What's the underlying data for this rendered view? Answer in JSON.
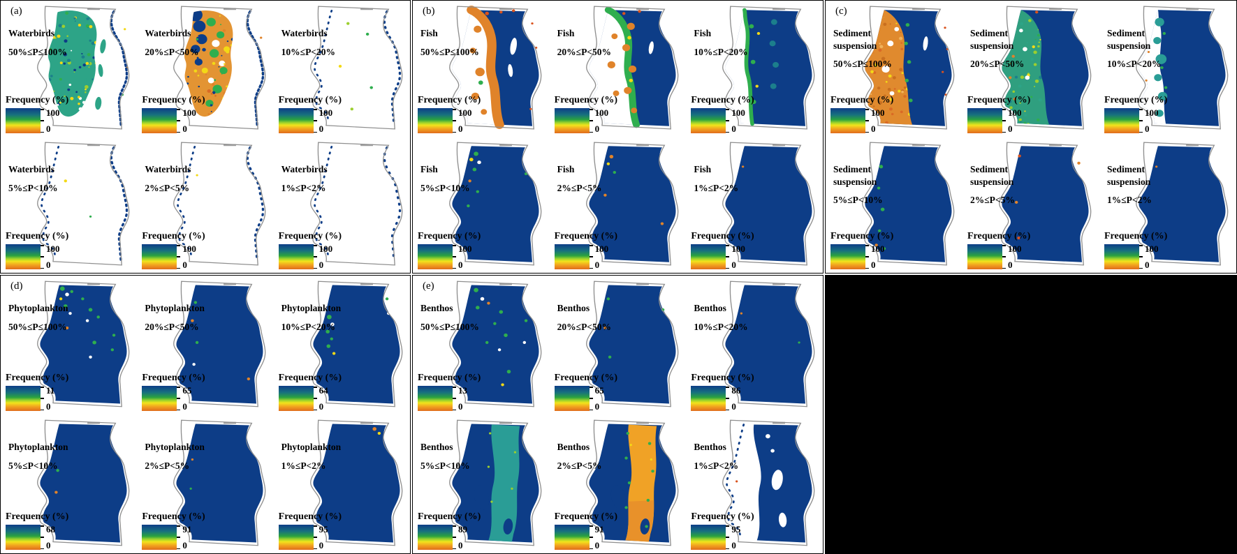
{
  "figure": {
    "description": "Frequency (%) map panels for five ecological indicators across probability classes"
  },
  "colors": {
    "navy": "#0d3d87",
    "teal_speckle": "#2da487",
    "teal_band": "#2a9d96",
    "orange_band": "#f0a226",
    "fringe_orange": "#e0832a",
    "deep_orange": "#d9531e",
    "green": "#2fae4e",
    "lime": "#9ccf2f",
    "yellow": "#f3d916",
    "dark_teal": "#1c7f8c",
    "mottle_orange": "#e39433",
    "west_orange": "#e08a2e",
    "west_teal": "#2f9f7f",
    "boundary_gray": "#8f8f8f",
    "colorbar_stops": [
      "#0d3d87",
      "#17707f",
      "#2ba33f",
      "#9ed32c",
      "#f2e41c",
      "#f2a51f",
      "#e06c1c"
    ]
  },
  "panels": [
    {
      "id": "a",
      "letter": "(a)",
      "maps": [
        {
          "species_lines": [
            "Waterbirds"
          ],
          "range": "50%≤P≤100%",
          "legend": {
            "label": "Frequency (%)",
            "max": "100",
            "min": "0"
          },
          "style": "teal-speckle-lobe"
        },
        {
          "species_lines": [
            "Waterbirds"
          ],
          "range": "20%≤P<50%",
          "legend": {
            "label": "Frequency (%)",
            "max": "100",
            "min": "0"
          },
          "style": "orange-blue-mottled-lobe"
        },
        {
          "species_lines": [
            "Waterbirds"
          ],
          "range": "10%≤P<20%",
          "legend": {
            "label": "Frequency (%)",
            "max": "100",
            "min": "0"
          },
          "style": "sparse-specks"
        },
        {
          "species_lines": [
            "Waterbirds"
          ],
          "range": "5%≤P<10%",
          "legend": {
            "label": "Frequency (%)",
            "max": "100",
            "min": "0"
          },
          "style": "coastal-dots"
        },
        {
          "species_lines": [
            "Waterbirds"
          ],
          "range": "2%≤P<5%",
          "legend": {
            "label": "Frequency (%)",
            "max": "100",
            "min": "0"
          },
          "style": "coastal-dots-few"
        },
        {
          "species_lines": [
            "Waterbirds"
          ],
          "range": "1%≤P<2%",
          "legend": {
            "label": "Frequency (%)",
            "max": "100",
            "min": "0"
          },
          "style": "coastal-dots-min"
        }
      ]
    },
    {
      "id": "b",
      "letter": "(b)",
      "maps": [
        {
          "species_lines": [
            "Fish"
          ],
          "range": "50%≤P≤100%",
          "legend": {
            "label": "Frequency (%)",
            "max": "100",
            "min": "0"
          },
          "style": "east-mass-orange-fringe"
        },
        {
          "species_lines": [
            "Fish"
          ],
          "range": "20%≤P<50%",
          "legend": {
            "label": "Frequency (%)",
            "max": "100",
            "min": "0"
          },
          "style": "east-mass-green-orange-fringe"
        },
        {
          "species_lines": [
            "Fish"
          ],
          "range": "10%≤P<20%",
          "legend": {
            "label": "Frequency (%)",
            "max": "100",
            "min": "0"
          },
          "style": "mass-green-west-edge"
        },
        {
          "species_lines": [
            "Fish"
          ],
          "range": "5%≤P<10%",
          "legend": {
            "label": "Frequency (%)",
            "max": "100",
            "min": "0"
          },
          "style": "mass-specks-nw-cluster"
        },
        {
          "species_lines": [
            "Fish"
          ],
          "range": "2%≤P<5%",
          "legend": {
            "label": "Frequency (%)",
            "max": "100",
            "min": "0"
          },
          "style": "mass-specks-rare"
        },
        {
          "species_lines": [
            "Fish"
          ],
          "range": "1%≤P<2%",
          "legend": {
            "label": "Frequency (%)",
            "max": "100",
            "min": "0"
          },
          "style": "mass-plain"
        }
      ]
    },
    {
      "id": "c",
      "letter": "(c)",
      "maps": [
        {
          "species_lines": [
            "Sediment",
            "suspension"
          ],
          "range": "50%≤P≤100%",
          "legend": {
            "label": "Frequency (%)",
            "max": "100",
            "min": "0"
          },
          "style": "orange-west-navy-east"
        },
        {
          "species_lines": [
            "Sediment",
            "suspension"
          ],
          "range": "20%≤P<50%",
          "legend": {
            "label": "Frequency (%)",
            "max": "100",
            "min": "0"
          },
          "style": "teal-west-navy-east"
        },
        {
          "species_lines": [
            "Sediment",
            "suspension"
          ],
          "range": "10%≤P<20%",
          "legend": {
            "label": "Frequency (%)",
            "max": "100",
            "min": "0"
          },
          "style": "mass-teal-west-patches"
        },
        {
          "species_lines": [
            "Sediment",
            "suspension"
          ],
          "range": "5%≤P<10%",
          "legend": {
            "label": "Frequency (%)",
            "max": "100",
            "min": "0"
          },
          "style": "mass-specks-west-green"
        },
        {
          "species_lines": [
            "Sediment",
            "suspension"
          ],
          "range": "2%≤P<5%",
          "legend": {
            "label": "Frequency (%)",
            "max": "100",
            "min": "0"
          },
          "style": "mass-specks-rare-orange"
        },
        {
          "species_lines": [
            "Sediment",
            "suspension"
          ],
          "range": "1%≤P<2%",
          "legend": {
            "label": "Frequency (%)",
            "max": "100",
            "min": "0"
          },
          "style": "mass-plain"
        }
      ]
    },
    {
      "id": "d",
      "letter": "(d)",
      "maps": [
        {
          "species_lines": [
            "Phytoplankton"
          ],
          "range": "50%≤P≤100%",
          "legend": {
            "label": "Frequency (%)",
            "max": "11",
            "min": "0"
          },
          "style": "mass-specks-nw"
        },
        {
          "species_lines": [
            "Phytoplankton"
          ],
          "range": "20%≤P<50%",
          "legend": {
            "label": "Frequency (%)",
            "max": "65",
            "min": "0"
          },
          "style": "mass-specks-rare-2"
        },
        {
          "species_lines": [
            "Phytoplankton"
          ],
          "range": "10%≤P<20%",
          "legend": {
            "label": "Frequency (%)",
            "max": "64",
            "min": "0"
          },
          "style": "mass-specks-west"
        },
        {
          "species_lines": [
            "Phytoplankton"
          ],
          "range": "5%≤P<10%",
          "legend": {
            "label": "Frequency (%)",
            "max": "68",
            "min": "0"
          },
          "style": "mass-near-plain"
        },
        {
          "species_lines": [
            "Phytoplankton"
          ],
          "range": "2%≤P<5%",
          "legend": {
            "label": "Frequency (%)",
            "max": "91",
            "min": "0"
          },
          "style": "mass-near-plain-2"
        },
        {
          "species_lines": [
            "Phytoplankton"
          ],
          "range": "1%≤P<2%",
          "legend": {
            "label": "Frequency (%)",
            "max": "95",
            "min": "0"
          },
          "style": "mass-speck-ne"
        }
      ]
    },
    {
      "id": "e",
      "letter": "(e)",
      "maps": [
        {
          "species_lines": [
            "Benthos"
          ],
          "range": "50%≤P≤100%",
          "legend": {
            "label": "Frequency (%)",
            "max": "13",
            "min": "0"
          },
          "style": "mass-specks-scattered"
        },
        {
          "species_lines": [
            "Benthos"
          ],
          "range": "20%≤P<50%",
          "legend": {
            "label": "Frequency (%)",
            "max": "65",
            "min": "0"
          },
          "style": "mass-specks-rare-3"
        },
        {
          "species_lines": [
            "Benthos"
          ],
          "range": "10%≤P<20%",
          "legend": {
            "label": "Frequency (%)",
            "max": "86",
            "min": "0"
          },
          "style": "mass-near-plain-3"
        },
        {
          "species_lines": [
            "Benthos"
          ],
          "range": "5%≤P<10%",
          "legend": {
            "label": "Frequency (%)",
            "max": "89",
            "min": "0"
          },
          "style": "mass-teal-midband"
        },
        {
          "species_lines": [
            "Benthos"
          ],
          "range": "2%≤P<5%",
          "legend": {
            "label": "Frequency (%)",
            "max": "91",
            "min": "0"
          },
          "style": "mass-orange-midband"
        },
        {
          "species_lines": [
            "Benthos"
          ],
          "range": "1%≤P<2%",
          "legend": {
            "label": "Frequency (%)",
            "max": "95",
            "min": "0"
          },
          "style": "white-west-navy-east"
        }
      ]
    }
  ]
}
